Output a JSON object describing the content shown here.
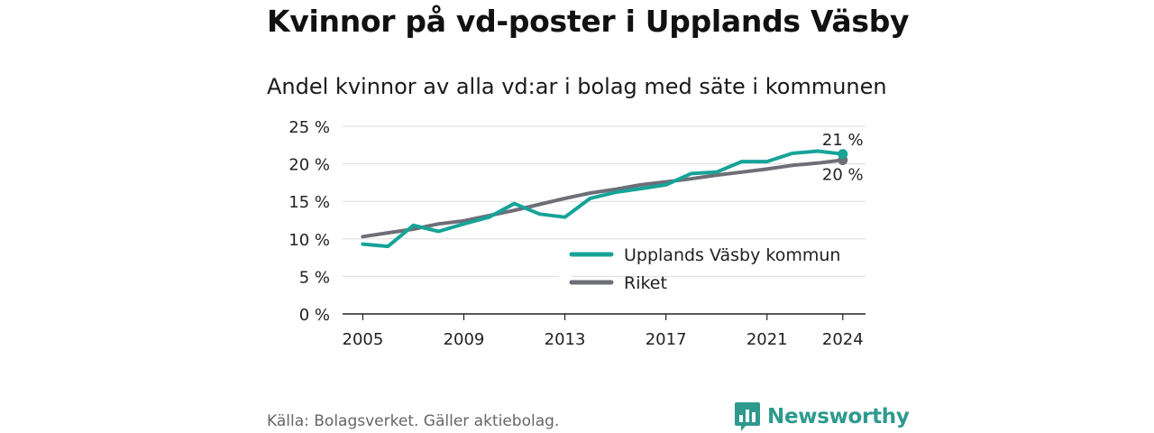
{
  "title": "Kvinnor på vd-poster i Upplands Väsby",
  "subtitle": "Andel kvinnor av alla vd:ar i bolag med säte i kommunen",
  "source": "Källa: Bolagsverket. Gäller aktiebolag.",
  "brand": {
    "name": "Newsworthy",
    "logo_icon": "bar-chart-speech-bubble-icon"
  },
  "colors": {
    "kommun": "#17a398",
    "riket": "#6e6e78",
    "brand": "#2e9a8e"
  },
  "chart_data": {
    "type": "line",
    "x": [
      2005,
      2006,
      2007,
      2008,
      2009,
      2010,
      2011,
      2012,
      2013,
      2014,
      2015,
      2016,
      2017,
      2018,
      2019,
      2020,
      2021,
      2022,
      2023,
      2024
    ],
    "xticks": [
      2005,
      2009,
      2013,
      2017,
      2021,
      2024
    ],
    "xtick_labels": [
      "2005",
      "2009",
      "2013",
      "2017",
      "2021",
      "2024"
    ],
    "ylim": [
      0,
      25
    ],
    "yticks": [
      0,
      5,
      10,
      15,
      20,
      25
    ],
    "ytick_labels": [
      "0 %",
      "5 %",
      "10 %",
      "15 %",
      "20 %",
      "25 %"
    ],
    "grid": "horizontal",
    "legend": "bottom-right",
    "series": [
      {
        "name": "Upplands Väsby kommun",
        "color": "#17a398",
        "values": [
          9.3,
          9.0,
          11.8,
          11.0,
          12.0,
          12.9,
          14.7,
          13.3,
          12.9,
          15.4,
          16.2,
          16.7,
          17.2,
          18.7,
          18.9,
          20.3,
          20.3,
          21.4,
          21.7,
          21.3
        ],
        "end_label": "21 %"
      },
      {
        "name": "Riket",
        "color": "#6e6e78",
        "values": [
          10.3,
          10.8,
          11.3,
          12.0,
          12.4,
          13.1,
          13.8,
          14.6,
          15.4,
          16.1,
          16.6,
          17.2,
          17.6,
          18.0,
          18.5,
          18.9,
          19.3,
          19.8,
          20.1,
          20.5
        ],
        "end_label": "20 %"
      }
    ]
  }
}
